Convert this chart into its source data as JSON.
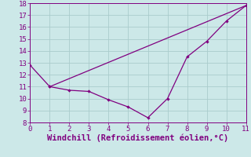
{
  "title": "",
  "xlabel": "Windchill (Refroidissement éolien,°C)",
  "ylabel": "",
  "background_color": "#cce8e8",
  "line_color": "#800080",
  "grid_color": "#aacccc",
  "ylim": [
    8,
    18
  ],
  "xlim": [
    0,
    11
  ],
  "yticks": [
    8,
    9,
    10,
    11,
    12,
    13,
    14,
    15,
    16,
    17,
    18
  ],
  "xticks": [
    0,
    1,
    2,
    3,
    4,
    5,
    6,
    7,
    8,
    9,
    10,
    11
  ],
  "line1_x": [
    0,
    1,
    2,
    3,
    4,
    5,
    6,
    7,
    8,
    9,
    10,
    11
  ],
  "line1_y": [
    12.8,
    11.0,
    10.7,
    10.6,
    9.9,
    9.3,
    8.4,
    10.0,
    13.5,
    14.8,
    16.5,
    17.8
  ],
  "line2_x": [
    1,
    11
  ],
  "line2_y": [
    11.0,
    17.8
  ],
  "xlabel_fontsize": 7.5,
  "tick_fontsize": 6.5
}
